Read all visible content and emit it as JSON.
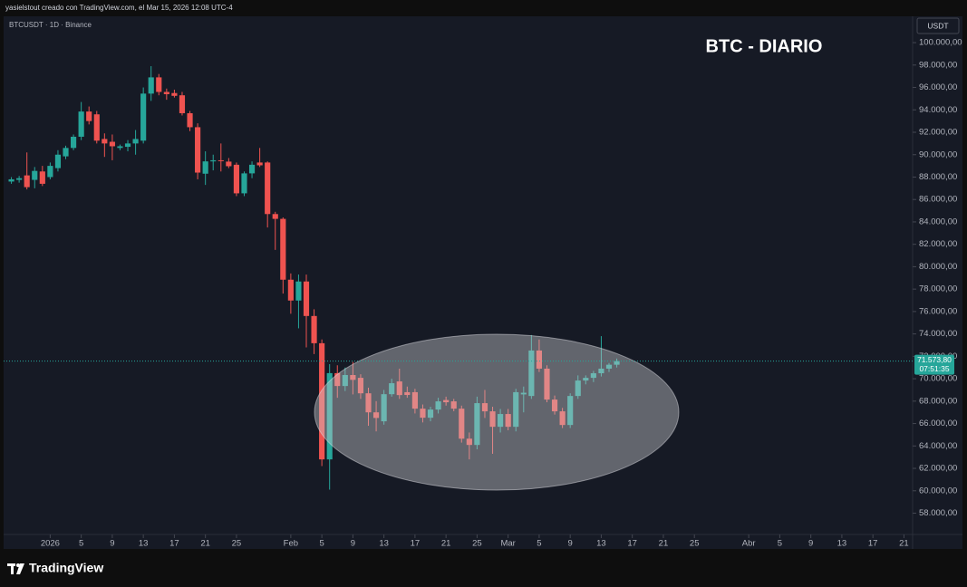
{
  "header": "yasielstout creado con TradingView.com, el Mar 15, 2026 12:08 UTC-4",
  "footer": {
    "brand": "TradingView"
  },
  "chart_data": {
    "type": "candlestick",
    "title": "BTC - DIARIO",
    "symbol_info": "BTCUSDT · 1D · Binance",
    "currency": "USDT",
    "up_color": "#26a69a",
    "down_color": "#ef5350",
    "grid": false,
    "x": [
      "2025-12-27",
      "2025-12-28",
      "2025-12-29",
      "2025-12-30",
      "2025-12-31",
      "2026-01-01",
      "2026-01-02",
      "2026-01-03",
      "2026-01-04",
      "2026-01-05",
      "2026-01-06",
      "2026-01-07",
      "2026-01-08",
      "2026-01-09",
      "2026-01-10",
      "2026-01-11",
      "2026-01-12",
      "2026-01-13",
      "2026-01-14",
      "2026-01-15",
      "2026-01-16",
      "2026-01-17",
      "2026-01-18",
      "2026-01-19",
      "2026-01-20",
      "2026-01-21",
      "2026-01-22",
      "2026-01-23",
      "2026-01-24",
      "2026-01-25",
      "2026-01-26",
      "2026-01-27",
      "2026-01-28",
      "2026-01-29",
      "2026-01-30",
      "2026-01-31",
      "2026-02-01",
      "2026-02-02",
      "2026-02-03",
      "2026-02-04",
      "2026-02-05",
      "2026-02-06",
      "2026-02-07",
      "2026-02-08",
      "2026-02-09",
      "2026-02-10",
      "2026-02-11",
      "2026-02-12",
      "2026-02-13",
      "2026-02-14",
      "2026-02-15",
      "2026-02-16",
      "2026-02-17",
      "2026-02-18",
      "2026-02-19",
      "2026-02-20",
      "2026-02-21",
      "2026-02-22",
      "2026-02-23",
      "2026-02-24",
      "2026-02-25",
      "2026-02-26",
      "2026-02-27",
      "2026-02-28",
      "2026-03-01",
      "2026-03-02",
      "2026-03-03",
      "2026-03-04",
      "2026-03-05",
      "2026-03-06",
      "2026-03-07",
      "2026-03-08",
      "2026-03-09",
      "2026-03-10",
      "2026-03-11",
      "2026-03-12",
      "2026-03-13",
      "2026-03-14",
      "2026-03-15"
    ],
    "open": [
      87600,
      87750,
      88150,
      87750,
      88500,
      88000,
      88800,
      89850,
      90600,
      91600,
      93850,
      93600,
      91400,
      91150,
      90600,
      90700,
      91000,
      91250,
      95450,
      96900,
      95600,
      95500,
      95300,
      93700,
      92450,
      88300,
      89400,
      89500,
      89380,
      89100,
      86550,
      88330,
      89300,
      89300,
      84700,
      84270,
      78840,
      76980,
      78680,
      75600,
      73170,
      62800,
      70500,
      69350,
      70330,
      70080,
      68700,
      67000,
      66200,
      68620,
      69760,
      68800,
      68800,
      67330,
      66520,
      67250,
      68100,
      67980,
      67330,
      64650,
      64090,
      67820,
      67090,
      65710,
      66850,
      65710,
      68600,
      68460,
      72520,
      70900,
      68140,
      67090,
      65870,
      68460,
      69840,
      70080,
      70490,
      70900,
      71250
    ],
    "high": [
      88000,
      88100,
      90200,
      88900,
      89000,
      89300,
      90400,
      90800,
      91800,
      94700,
      94300,
      93900,
      91900,
      91800,
      90900,
      91300,
      92200,
      96000,
      97900,
      97200,
      95900,
      95800,
      95600,
      93900,
      92800,
      90300,
      90000,
      91000,
      89700,
      89300,
      88500,
      89400,
      90600,
      89400,
      84900,
      84400,
      79400,
      79300,
      79300,
      76200,
      73500,
      71300,
      71200,
      71000,
      71500,
      70400,
      69200,
      68000,
      69000,
      70000,
      70900,
      69300,
      69100,
      67700,
      67500,
      68300,
      68400,
      68200,
      67600,
      65200,
      68400,
      69000,
      67500,
      67300,
      67300,
      69100,
      69300,
      73900,
      73500,
      71200,
      68500,
      67400,
      68700,
      70300,
      70300,
      70700,
      73800,
      71400,
      71800
    ],
    "low": [
      87400,
      87500,
      86900,
      87000,
      87200,
      87800,
      88500,
      89600,
      90400,
      91300,
      92700,
      91000,
      89800,
      89500,
      90400,
      90300,
      90000,
      91000,
      94800,
      95300,
      94900,
      95100,
      93500,
      92100,
      87800,
      87300,
      88600,
      88500,
      88800,
      86300,
      86300,
      87900,
      88900,
      83500,
      81500,
      77600,
      75800,
      74500,
      72800,
      72200,
      62200,
      60100,
      68300,
      68900,
      68600,
      68200,
      65800,
      65300,
      65900,
      68400,
      68200,
      68300,
      66900,
      66100,
      66200,
      66900,
      67600,
      67100,
      64300,
      62800,
      63700,
      66500,
      63300,
      65200,
      65400,
      65300,
      67000,
      68200,
      70600,
      67900,
      66800,
      65600,
      65600,
      68200,
      69500,
      69700,
      70200,
      70600,
      71000
    ],
    "close": [
      87800,
      87900,
      87100,
      88550,
      87400,
      89000,
      90000,
      90600,
      91600,
      93850,
      93000,
      91250,
      91000,
      90750,
      90750,
      91000,
      91400,
      95450,
      96900,
      95600,
      95400,
      95250,
      93700,
      92450,
      88400,
      89400,
      89500,
      89450,
      88970,
      86550,
      88330,
      89100,
      89050,
      84700,
      84270,
      78840,
      76980,
      78680,
      75600,
      73170,
      62800,
      70500,
      69350,
      70330,
      69900,
      68700,
      67000,
      66500,
      68620,
      69600,
      68540,
      68550,
      67330,
      66520,
      67250,
      67980,
      67900,
      67330,
      64650,
      64090,
      67820,
      67090,
      65710,
      66850,
      65710,
      68800,
      68750,
      72520,
      70900,
      68140,
      67090,
      65870,
      68460,
      69840,
      70080,
      70490,
      70900,
      71250,
      71573.8
    ],
    "last_price": {
      "value": 71573.8,
      "label": "71.573,80"
    },
    "countdown": "07:51:35",
    "xlim": [
      "2025-12-26",
      "2026-04-22"
    ],
    "xticks": [
      {
        "value": "2026-01-01",
        "label": "2026"
      },
      {
        "value": "2026-01-05",
        "label": "5"
      },
      {
        "value": "2026-01-09",
        "label": "9"
      },
      {
        "value": "2026-01-13",
        "label": "13"
      },
      {
        "value": "2026-01-17",
        "label": "17"
      },
      {
        "value": "2026-01-21",
        "label": "21"
      },
      {
        "value": "2026-01-25",
        "label": "25"
      },
      {
        "value": "2026-02-01",
        "label": "Feb"
      },
      {
        "value": "2026-02-05",
        "label": "5"
      },
      {
        "value": "2026-02-09",
        "label": "9"
      },
      {
        "value": "2026-02-13",
        "label": "13"
      },
      {
        "value": "2026-02-17",
        "label": "17"
      },
      {
        "value": "2026-02-21",
        "label": "21"
      },
      {
        "value": "2026-02-25",
        "label": "25"
      },
      {
        "value": "2026-03-01",
        "label": "Mar"
      },
      {
        "value": "2026-03-05",
        "label": "5"
      },
      {
        "value": "2026-03-09",
        "label": "9"
      },
      {
        "value": "2026-03-13",
        "label": "13"
      },
      {
        "value": "2026-03-17",
        "label": "17"
      },
      {
        "value": "2026-03-21",
        "label": "21"
      },
      {
        "value": "2026-03-25",
        "label": "25"
      },
      {
        "value": "2026-04-01",
        "label": "Abr"
      },
      {
        "value": "2026-04-05",
        "label": "5"
      },
      {
        "value": "2026-04-09",
        "label": "9"
      },
      {
        "value": "2026-04-13",
        "label": "13"
      },
      {
        "value": "2026-04-17",
        "label": "17"
      },
      {
        "value": "2026-04-21",
        "label": "21"
      }
    ],
    "ylim": [
      56100,
      102350
    ],
    "yticks": [
      {
        "value": 58000,
        "label": "58.000,00"
      },
      {
        "value": 60000,
        "label": "60.000,00"
      },
      {
        "value": 62000,
        "label": "62.000,00"
      },
      {
        "value": 64000,
        "label": "64.000,00"
      },
      {
        "value": 66000,
        "label": "66.000,00"
      },
      {
        "value": 68000,
        "label": "68.000,00"
      },
      {
        "value": 70000,
        "label": "70.000,00"
      },
      {
        "value": 72000,
        "label": "72.000,00"
      },
      {
        "value": 74000,
        "label": "74.000,00"
      },
      {
        "value": 76000,
        "label": "76.000,00"
      },
      {
        "value": 78000,
        "label": "78.000,00"
      },
      {
        "value": 80000,
        "label": "80.000,00"
      },
      {
        "value": 82000,
        "label": "82.000,00"
      },
      {
        "value": 84000,
        "label": "84.000,00"
      },
      {
        "value": 86000,
        "label": "86.000,00"
      },
      {
        "value": 88000,
        "label": "88.000,00"
      },
      {
        "value": 90000,
        "label": "90.000,00"
      },
      {
        "value": 92000,
        "label": "92.000,00"
      },
      {
        "value": 94000,
        "label": "94.000,00"
      },
      {
        "value": 96000,
        "label": "96.000,00"
      },
      {
        "value": 98000,
        "label": "98.000,00"
      },
      {
        "value": 100000,
        "label": "100.000,00"
      }
    ]
  }
}
